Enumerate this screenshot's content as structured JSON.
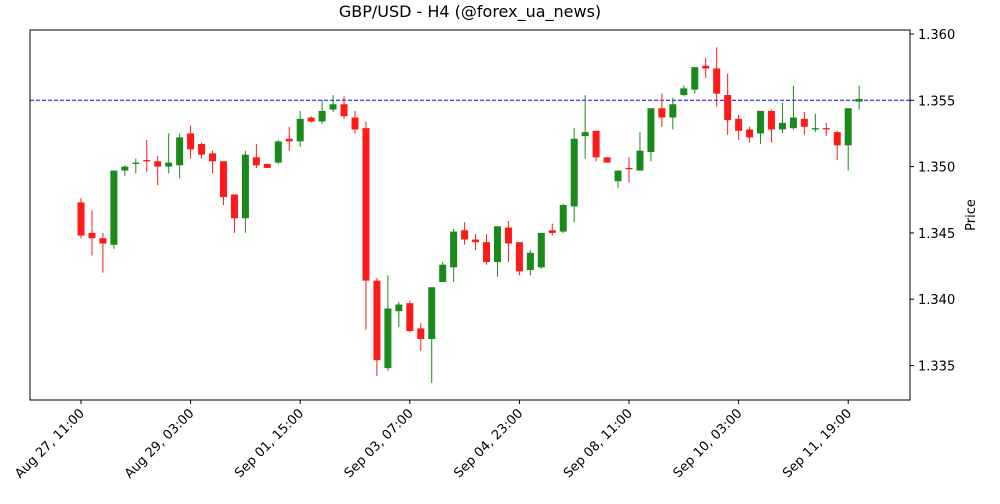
{
  "chart_data": {
    "type": "candlestick",
    "title": "GBP/USD - H4 (@forex_ua_news)",
    "ylabel": "Price",
    "categories": [
      "Aug 27, 11:00",
      null,
      null,
      null,
      null,
      null,
      null,
      null,
      null,
      null,
      "Aug 29, 03:00",
      null,
      null,
      null,
      null,
      null,
      null,
      null,
      null,
      null,
      "Sep 01, 15:00",
      null,
      null,
      null,
      null,
      null,
      null,
      null,
      null,
      null,
      "Sep 03, 07:00",
      null,
      null,
      null,
      null,
      null,
      null,
      null,
      null,
      null,
      "Sep 04, 23:00",
      null,
      null,
      null,
      null,
      null,
      null,
      null,
      null,
      null,
      "Sep 08, 11:00",
      null,
      null,
      null,
      null,
      null,
      null,
      null,
      null,
      null,
      "Sep 10, 03:00",
      null,
      null,
      null,
      null,
      null,
      null,
      null,
      null,
      null,
      "Sep 11, 19:00",
      null
    ],
    "open": [
      1.3473,
      1.345,
      1.3446,
      1.3441,
      1.3497,
      1.3502,
      1.3505,
      1.3504,
      1.35,
      1.3501,
      1.3525,
      1.3517,
      1.351,
      1.3504,
      1.3479,
      1.3461,
      1.3507,
      1.3502,
      1.3503,
      1.3521,
      1.3519,
      1.3537,
      1.3534,
      1.3543,
      1.3547,
      1.3537,
      1.3529,
      1.3414,
      1.3348,
      1.3391,
      1.3397,
      1.3378,
      1.337,
      1.3413,
      1.3424,
      1.3452,
      1.3445,
      1.3443,
      1.3428,
      1.3454,
      1.3443,
      1.3422,
      1.3424,
      1.3452,
      1.3451,
      1.347,
      1.3523,
      1.3527,
      1.3507,
      1.3489,
      1.3499,
      1.3497,
      1.3511,
      1.3544,
      1.3537,
      1.3554,
      1.3558,
      1.3576,
      1.3574,
      1.3554,
      1.3536,
      1.3528,
      1.3525,
      1.3542,
      1.3528,
      1.3529,
      1.3536,
      1.3528,
      1.3529,
      1.3526,
      1.3516,
      1.3549
    ],
    "high": [
      1.3476,
      1.3467,
      1.345,
      1.3497,
      1.3501,
      1.3506,
      1.352,
      1.3508,
      1.3525,
      1.3525,
      1.3531,
      1.3518,
      1.3512,
      1.3504,
      1.3479,
      1.3512,
      1.3517,
      1.3502,
      1.352,
      1.353,
      1.3542,
      1.3538,
      1.355,
      1.3554,
      1.3553,
      1.3542,
      1.3534,
      1.3416,
      1.3418,
      1.3398,
      1.3399,
      1.3382,
      1.3409,
      1.3428,
      1.3453,
      1.3458,
      1.3449,
      1.3449,
      1.3455,
      1.3459,
      1.3443,
      1.3437,
      1.345,
      1.3457,
      1.3472,
      1.3529,
      1.3554,
      1.3527,
      1.3507,
      1.3497,
      1.3507,
      1.3526,
      1.3544,
      1.3555,
      1.3552,
      1.3561,
      1.3575,
      1.3582,
      1.359,
      1.357,
      1.3539,
      1.353,
      1.3542,
      1.3543,
      1.3548,
      1.3561,
      1.3541,
      1.354,
      1.3533,
      1.3527,
      1.3544,
      1.3561
    ],
    "low": [
      1.3446,
      1.3433,
      1.342,
      1.3438,
      1.3493,
      1.3495,
      1.3496,
      1.3486,
      1.3495,
      1.3491,
      1.3506,
      1.3506,
      1.3495,
      1.3471,
      1.345,
      1.345,
      1.3499,
      1.3499,
      1.3502,
      1.3512,
      1.3515,
      1.3533,
      1.3532,
      1.3541,
      1.3536,
      1.3525,
      1.3377,
      1.3342,
      1.3346,
      1.3379,
      1.3375,
      1.3361,
      1.3337,
      1.3413,
      1.3413,
      1.3441,
      1.3437,
      1.3426,
      1.3417,
      1.3428,
      1.3418,
      1.3418,
      1.3423,
      1.3448,
      1.345,
      1.3458,
      1.3506,
      1.3504,
      1.3503,
      1.3484,
      1.3488,
      1.3497,
      1.3504,
      1.353,
      1.3528,
      1.3553,
      1.3555,
      1.3567,
      1.3545,
      1.3524,
      1.352,
      1.3518,
      1.3517,
      1.3518,
      1.3525,
      1.3528,
      1.3524,
      1.3526,
      1.3523,
      1.3505,
      1.3497,
      1.3543
    ],
    "close": [
      1.3448,
      1.3446,
      1.3442,
      1.3497,
      1.35,
      1.3503,
      1.3504,
      1.35,
      1.3503,
      1.3522,
      1.3513,
      1.3509,
      1.3504,
      1.3477,
      1.3461,
      1.3509,
      1.3501,
      1.3499,
      1.3519,
      1.3519,
      1.3536,
      1.3534,
      1.3542,
      1.3547,
      1.3538,
      1.3528,
      1.3414,
      1.3354,
      1.3393,
      1.3396,
      1.3376,
      1.337,
      1.3409,
      1.3426,
      1.3451,
      1.3445,
      1.3443,
      1.3428,
      1.3455,
      1.3442,
      1.3421,
      1.3435,
      1.345,
      1.345,
      1.3471,
      1.3521,
      1.3526,
      1.3507,
      1.3503,
      1.3497,
      1.3498,
      1.3512,
      1.3544,
      1.3537,
      1.3547,
      1.3559,
      1.3575,
      1.3574,
      1.3555,
      1.3535,
      1.3527,
      1.3522,
      1.3542,
      1.3528,
      1.3533,
      1.3537,
      1.353,
      1.3529,
      1.3528,
      1.3516,
      1.3544,
      1.3551
    ],
    "up_color": "#1a8a1a",
    "down_color": "#ff1a1a",
    "hline": {
      "value": 1.355,
      "color": "#0000ff",
      "style": "dashed"
    },
    "ylim": [
      1.3324,
      1.3603
    ],
    "yticks": [
      1.335,
      {
        "value": 1.34,
        "label": "1.340"
      },
      1.345,
      {
        "value": 1.35,
        "label": "1.350"
      },
      1.355,
      {
        "value": 1.36,
        "label": "1.360"
      }
    ],
    "yaxis_side": "right"
  }
}
